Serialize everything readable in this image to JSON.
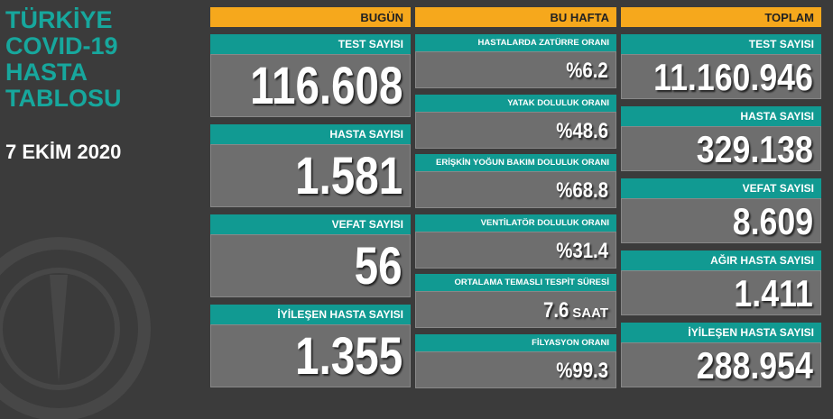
{
  "header": {
    "title_lines": [
      "TÜRKİYE",
      "COVID-19",
      "HASTA",
      "TABLOSU"
    ],
    "date": "7 EKİM 2020"
  },
  "columns": [
    {
      "heading": "BUGÜN",
      "items": [
        {
          "label": "TEST SAYISI",
          "value": "116.608"
        },
        {
          "label": "HASTA SAYISI",
          "value": "1.581"
        },
        {
          "label": "VEFAT SAYISI",
          "value": "56"
        },
        {
          "label": "İYİLEŞEN HASTA SAYISI",
          "value": "1.355"
        }
      ]
    },
    {
      "heading": "BU HAFTA",
      "items": [
        {
          "label": "HASTALARDA ZATÜRRE ORANI",
          "value": "%6.2"
        },
        {
          "label": "YATAK DOLULUK ORANI",
          "value": "%48.6"
        },
        {
          "label": "ERİŞKİN YOĞUN BAKIM DOLULUK ORANI",
          "value": "%68.8"
        },
        {
          "label": "VENTİLATÖR DOLULUK ORANI",
          "value": "%31.4"
        },
        {
          "label": "ORTALAMA TEMASLI TESPİT SÜRESİ",
          "value": "7.6",
          "unit": "SAAT"
        },
        {
          "label": "FİLYASYON ORANI",
          "value": "%99.3"
        }
      ]
    },
    {
      "heading": "TOPLAM",
      "items": [
        {
          "label": "TEST SAYISI",
          "value": "11.160.946"
        },
        {
          "label": "HASTA SAYISI",
          "value": "329.138"
        },
        {
          "label": "VEFAT SAYISI",
          "value": "8.609"
        },
        {
          "label": "AĞIR HASTA SAYISI",
          "value": "1.411"
        },
        {
          "label": "İYİLEŞEN HASTA SAYISI",
          "value": "288.954"
        }
      ]
    }
  ]
}
